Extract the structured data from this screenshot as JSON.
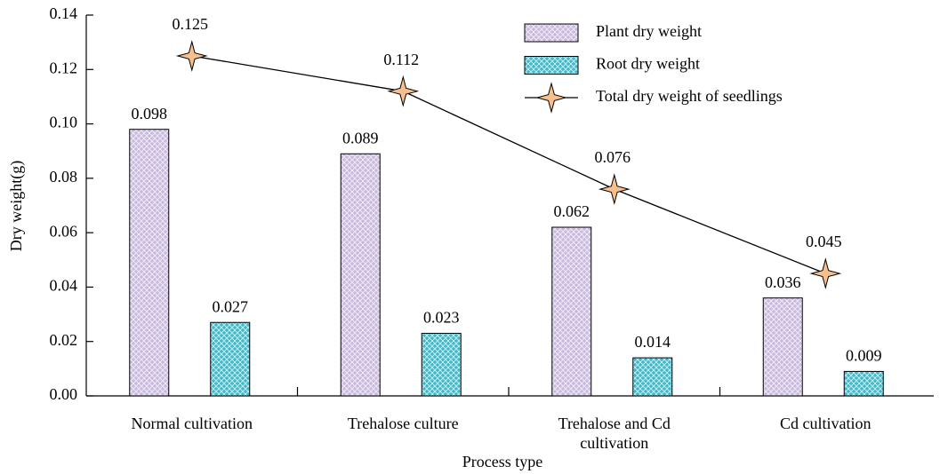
{
  "chart_data": {
    "type": "bar",
    "x_label": "Process type",
    "y_label": "Dry weight(g)",
    "categories": [
      "Normal cultivation",
      "Trehalose culture",
      "Trehalose and Cd cultivation",
      "Cd cultivation"
    ],
    "series": [
      {
        "name": "Plant dry weight",
        "color": "#c9b9de",
        "type": "bar",
        "values": [
          0.098,
          0.089,
          0.062,
          0.036
        ]
      },
      {
        "name": "Root dry weight",
        "color": "#3fb9c9",
        "type": "bar",
        "values": [
          0.027,
          0.023,
          0.014,
          0.009
        ]
      },
      {
        "name": "Total dry weight of seedlings",
        "color": "#f7bf8e",
        "type": "line",
        "values": [
          0.125,
          0.112,
          0.076,
          0.045
        ]
      }
    ],
    "ylim": [
      0,
      0.14
    ],
    "yticks": [
      {
        "value": 0,
        "label": "0.00"
      },
      0.02,
      0.04,
      0.06,
      0.08,
      {
        "value": 0.1,
        "label": "0.10"
      },
      {
        "value": 0.12,
        "label": "0.12"
      },
      0.14
    ],
    "legend": "upper right"
  }
}
